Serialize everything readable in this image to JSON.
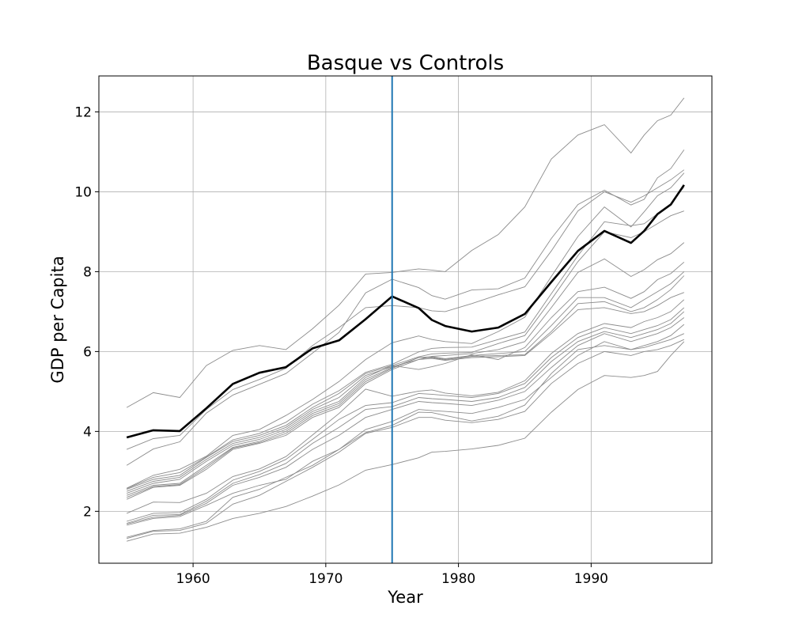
{
  "chart_data": {
    "type": "line",
    "title": "Basque vs Controls",
    "xlabel": "Year",
    "ylabel": "GDP per Capita",
    "xlim": [
      1952.9,
      1999.1
    ],
    "ylim": [
      0.7,
      12.9
    ],
    "xticks": [
      "1960",
      "1970",
      "1980",
      "1990"
    ],
    "yticks": [
      "2",
      "4",
      "6",
      "8",
      "10",
      "12"
    ],
    "grid": true,
    "treatment_year": 1975,
    "treatment_color": "#1f77b4",
    "treated_color": "#000000",
    "control_color": "#8c8c8c",
    "x": [
      1955,
      1957,
      1959,
      1961,
      1963,
      1965,
      1967,
      1969,
      1971,
      1973,
      1975,
      1977,
      1978,
      1979,
      1981,
      1983,
      1985,
      1987,
      1989,
      1991,
      1993,
      1994,
      1995,
      1996,
      1997
    ],
    "series": [
      {
        "role": "treated",
        "values": [
          3.85,
          4.03,
          4.01,
          4.58,
          5.19,
          5.47,
          5.61,
          6.08,
          6.28,
          6.81,
          7.38,
          7.09,
          6.79,
          6.64,
          6.5,
          6.6,
          6.94,
          7.74,
          8.52,
          9.02,
          8.72,
          9.02,
          9.44,
          9.68,
          10.17
        ]
      },
      {
        "role": "control",
        "values": [
          4.6,
          4.97,
          4.85,
          5.65,
          6.03,
          6.15,
          6.05,
          6.57,
          7.16,
          7.94,
          7.98,
          8.07,
          8.04,
          8.0,
          8.53,
          8.93,
          9.62,
          10.82,
          11.42,
          11.68,
          10.97,
          11.42,
          11.78,
          11.92,
          12.35
        ]
      },
      {
        "role": "control",
        "values": [
          3.15,
          3.56,
          3.74,
          4.46,
          4.91,
          5.18,
          5.45,
          5.96,
          6.48,
          7.47,
          7.81,
          7.6,
          7.4,
          7.31,
          7.54,
          7.57,
          7.84,
          8.83,
          9.68,
          10.04,
          9.67,
          9.81,
          10.35,
          10.58,
          11.05
        ]
      },
      {
        "role": "control",
        "values": [
          3.55,
          3.82,
          3.9,
          4.55,
          5.05,
          5.3,
          5.58,
          6.15,
          6.6,
          7.1,
          7.15,
          7.1,
          7.02,
          7.0,
          7.2,
          7.42,
          7.62,
          8.52,
          9.52,
          10.0,
          9.74,
          9.9,
          10.1,
          10.3,
          10.55
        ]
      },
      {
        "role": "control",
        "values": [
          2.58,
          2.9,
          3.05,
          3.38,
          3.9,
          4.05,
          4.4,
          4.8,
          5.25,
          5.8,
          6.22,
          6.39,
          6.3,
          6.25,
          6.2,
          6.5,
          6.86,
          7.88,
          8.88,
          9.62,
          9.12,
          9.5,
          9.9,
          10.1,
          10.47
        ]
      },
      {
        "role": "control",
        "values": [
          2.57,
          2.85,
          2.97,
          3.36,
          3.79,
          3.95,
          4.23,
          4.68,
          5.02,
          5.48,
          5.68,
          5.99,
          6.08,
          6.1,
          6.11,
          6.3,
          6.49,
          7.45,
          8.4,
          9.25,
          9.15,
          9.2,
          9.45,
          9.7,
          10.12
        ]
      },
      {
        "role": "control",
        "values": [
          2.55,
          2.8,
          2.9,
          3.35,
          3.75,
          3.9,
          4.15,
          4.6,
          4.95,
          5.45,
          5.65,
          5.87,
          5.94,
          5.96,
          5.98,
          6.2,
          6.4,
          7.3,
          8.25,
          9.0,
          8.85,
          9.0,
          9.2,
          9.4,
          9.52
        ]
      },
      {
        "role": "control",
        "values": [
          2.5,
          2.75,
          2.85,
          3.3,
          3.7,
          3.85,
          4.1,
          4.55,
          4.85,
          5.4,
          5.62,
          5.8,
          5.88,
          5.9,
          5.95,
          6.05,
          6.25,
          7.1,
          7.98,
          8.32,
          7.88,
          8.05,
          8.3,
          8.45,
          8.73
        ]
      },
      {
        "role": "control",
        "values": [
          2.45,
          2.7,
          2.8,
          3.25,
          3.65,
          3.8,
          4.05,
          4.5,
          4.75,
          5.35,
          5.65,
          5.55,
          5.62,
          5.7,
          5.92,
          5.8,
          6.1,
          6.85,
          7.5,
          7.61,
          7.33,
          7.5,
          7.8,
          7.95,
          8.24
        ]
      },
      {
        "role": "control",
        "values": [
          2.4,
          2.65,
          2.7,
          3.15,
          3.6,
          3.75,
          4.0,
          4.45,
          4.7,
          5.3,
          5.6,
          5.85,
          5.87,
          5.82,
          5.9,
          5.95,
          6.0,
          6.65,
          7.35,
          7.35,
          7.1,
          7.3,
          7.5,
          7.7,
          8.0
        ]
      },
      {
        "role": "control",
        "values": [
          2.35,
          2.62,
          2.67,
          3.1,
          3.58,
          3.72,
          3.95,
          4.4,
          4.65,
          5.25,
          5.58,
          5.85,
          5.85,
          5.8,
          5.88,
          5.9,
          5.92,
          6.5,
          7.2,
          7.25,
          7.0,
          7.1,
          7.3,
          7.55,
          7.9
        ]
      },
      {
        "role": "control",
        "values": [
          2.3,
          2.6,
          2.65,
          3.05,
          3.55,
          3.7,
          3.9,
          4.35,
          4.6,
          5.2,
          5.55,
          5.8,
          5.83,
          5.78,
          5.85,
          5.87,
          5.9,
          6.45,
          7.05,
          7.1,
          6.95,
          7.0,
          7.15,
          7.35,
          7.48
        ]
      },
      {
        "role": "control",
        "values": [
          1.95,
          2.23,
          2.22,
          2.45,
          2.87,
          3.06,
          3.37,
          3.91,
          4.45,
          5.06,
          4.88,
          5.01,
          5.04,
          4.96,
          4.89,
          4.98,
          5.27,
          5.95,
          6.45,
          6.7,
          6.6,
          6.75,
          6.85,
          7.0,
          7.3
        ]
      },
      {
        "role": "control",
        "values": [
          1.75,
          1.95,
          1.97,
          2.3,
          2.78,
          3.0,
          3.3,
          3.8,
          4.3,
          4.65,
          4.72,
          4.95,
          4.93,
          4.9,
          4.85,
          4.95,
          5.2,
          5.85,
          6.35,
          6.6,
          6.45,
          6.55,
          6.65,
          6.8,
          7.1
        ]
      },
      {
        "role": "control",
        "values": [
          1.7,
          1.9,
          1.92,
          2.25,
          2.7,
          2.92,
          3.2,
          3.7,
          4.1,
          4.55,
          4.62,
          4.85,
          4.82,
          4.8,
          4.75,
          4.85,
          5.1,
          5.75,
          6.25,
          6.5,
          6.35,
          6.45,
          6.55,
          6.7,
          7.0
        ]
      },
      {
        "role": "control",
        "values": [
          1.68,
          1.85,
          1.9,
          2.2,
          2.65,
          2.85,
          3.1,
          3.55,
          3.9,
          4.35,
          4.55,
          4.75,
          4.72,
          4.7,
          4.65,
          4.78,
          5.0,
          5.6,
          6.15,
          6.45,
          6.25,
          6.35,
          6.45,
          6.6,
          6.85
        ]
      },
      {
        "role": "control",
        "values": [
          1.65,
          1.82,
          1.87,
          2.15,
          2.45,
          2.65,
          2.8,
          3.25,
          3.55,
          4.05,
          4.25,
          4.55,
          4.52,
          4.5,
          4.45,
          4.6,
          4.8,
          5.35,
          5.9,
          6.25,
          6.05,
          6.15,
          6.25,
          6.4,
          6.68
        ]
      },
      {
        "role": "control",
        "values": [
          1.35,
          1.52,
          1.56,
          1.75,
          2.35,
          2.55,
          2.85,
          3.15,
          3.55,
          3.97,
          4.15,
          4.48,
          4.47,
          4.4,
          4.26,
          4.38,
          4.66,
          5.45,
          6.05,
          6.15,
          6.05,
          6.1,
          6.2,
          6.3,
          6.45
        ]
      },
      {
        "role": "control",
        "values": [
          1.32,
          1.5,
          1.52,
          1.7,
          2.18,
          2.4,
          2.75,
          3.1,
          3.48,
          3.95,
          4.1,
          4.35,
          4.35,
          4.28,
          4.22,
          4.3,
          4.5,
          5.2,
          5.7,
          6.0,
          5.9,
          6.0,
          6.05,
          6.15,
          6.3
        ]
      },
      {
        "role": "control",
        "values": [
          1.25,
          1.43,
          1.45,
          1.6,
          1.82,
          1.95,
          2.12,
          2.38,
          2.66,
          3.03,
          3.17,
          3.34,
          3.48,
          3.5,
          3.56,
          3.65,
          3.83,
          4.48,
          5.05,
          5.4,
          5.35,
          5.4,
          5.5,
          5.9,
          6.25
        ]
      }
    ]
  }
}
